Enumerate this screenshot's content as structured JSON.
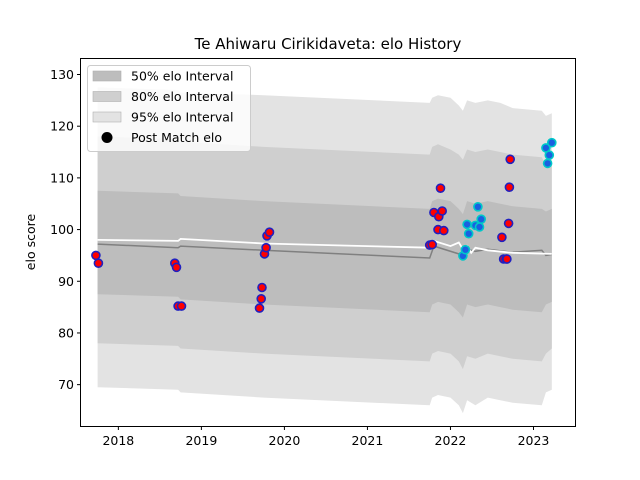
{
  "chart_data": {
    "type": "scatter",
    "title": "Te Ahiwaru Cirikidaveta: elo History",
    "xlabel": "",
    "ylabel": "elo score",
    "xlim": [
      2017.55,
      2023.5
    ],
    "ylim": [
      62,
      133
    ],
    "xticks": [
      2018,
      2019,
      2020,
      2021,
      2022,
      2023
    ],
    "yticks": [
      70,
      80,
      90,
      100,
      110,
      120,
      130
    ],
    "grid": false,
    "legend_position": "top-left",
    "legend": [
      {
        "label": "50% elo Interval",
        "swatch": "band50"
      },
      {
        "label": "80% elo Interval",
        "swatch": "band80"
      },
      {
        "label": "95% elo Interval",
        "swatch": "band95"
      },
      {
        "label": "Post Match elo",
        "swatch": "dot"
      }
    ],
    "colors": {
      "band95": "#e3e3e3",
      "band80": "#cfcfcf",
      "band50": "#bdbdbd",
      "mean_line": "#808080",
      "pre_line": "#ffffff",
      "marker_red_fill": "#ff0000",
      "marker_red_edge": "#2020c0",
      "marker_cyan_fill": "#1a60e0",
      "marker_cyan_edge": "#00c8c8"
    },
    "bands": [
      {
        "x": 2017.75,
        "p95": [
          69.5,
          127.5
        ],
        "p80": [
          78,
          118
        ],
        "p50": [
          87.5,
          107.5
        ]
      },
      {
        "x": 2018.72,
        "p95": [
          69,
          127
        ],
        "p80": [
          77.5,
          117.5
        ],
        "p50": [
          87,
          107
        ]
      },
      {
        "x": 2018.75,
        "p95": [
          68.5,
          126.5
        ],
        "p80": [
          77,
          117
        ],
        "p50": [
          86.5,
          106.5
        ]
      },
      {
        "x": 2019.75,
        "p95": [
          67.5,
          126
        ],
        "p80": [
          76,
          116
        ],
        "p50": [
          85.5,
          105.5
        ]
      },
      {
        "x": 2021.75,
        "p95": [
          66,
          124.5
        ],
        "p80": [
          74.5,
          114.5
        ],
        "p50": [
          84,
          104
        ]
      },
      {
        "x": 2021.78,
        "p95": [
          67.5,
          125.5
        ],
        "p80": [
          76,
          116
        ],
        "p50": [
          85.5,
          105.5
        ]
      },
      {
        "x": 2021.85,
        "p95": [
          68,
          126
        ],
        "p80": [
          76.5,
          116.5
        ],
        "p50": [
          86,
          106
        ]
      },
      {
        "x": 2022.0,
        "p95": [
          67.5,
          125.5
        ],
        "p80": [
          76,
          115.5
        ],
        "p50": [
          85.5,
          105.5
        ]
      },
      {
        "x": 2022.1,
        "p95": [
          66,
          124
        ],
        "p80": [
          74.5,
          114.5
        ],
        "p50": [
          84,
          104
        ]
      },
      {
        "x": 2022.15,
        "p95": [
          64.5,
          123
        ],
        "p80": [
          73,
          113.5
        ],
        "p50": [
          83,
          103
        ]
      },
      {
        "x": 2022.2,
        "p95": [
          67,
          125
        ],
        "p80": [
          75.5,
          115.5
        ],
        "p50": [
          85.5,
          105.5
        ]
      },
      {
        "x": 2022.3,
        "p95": [
          66,
          124.5
        ],
        "p80": [
          75,
          115
        ],
        "p50": [
          85,
          105
        ]
      },
      {
        "x": 2022.45,
        "p95": [
          67.5,
          125
        ],
        "p80": [
          76,
          115.5
        ],
        "p50": [
          85.5,
          105.5
        ]
      },
      {
        "x": 2022.6,
        "p95": [
          67,
          124.5
        ],
        "p80": [
          75.5,
          115
        ],
        "p50": [
          85,
          105
        ]
      },
      {
        "x": 2022.75,
        "p95": [
          66.5,
          123.5
        ],
        "p80": [
          75,
          114.5
        ],
        "p50": [
          84.5,
          104.5
        ]
      },
      {
        "x": 2023.1,
        "p95": [
          66,
          123
        ],
        "p80": [
          74.5,
          114
        ],
        "p50": [
          84,
          104
        ]
      },
      {
        "x": 2023.15,
        "p95": [
          68.5,
          122
        ],
        "p80": [
          76,
          112.5
        ],
        "p50": [
          85.5,
          103.5
        ]
      },
      {
        "x": 2023.22,
        "p95": [
          69,
          122.5
        ],
        "p80": [
          77,
          113
        ],
        "p50": [
          86,
          104
        ]
      }
    ],
    "mean_line": [
      [
        2017.75,
        97.2
      ],
      [
        2018.72,
        96.5
      ],
      [
        2018.75,
        96.8
      ],
      [
        2019.75,
        96.0
      ],
      [
        2021.75,
        94.5
      ],
      [
        2021.8,
        96.8
      ],
      [
        2022.1,
        95.3
      ],
      [
        2022.2,
        96.2
      ],
      [
        2022.3,
        95.8
      ],
      [
        2022.45,
        96.2
      ],
      [
        2022.75,
        95.6
      ],
      [
        2023.1,
        96.0
      ],
      [
        2023.15,
        95.0
      ],
      [
        2023.22,
        95.2
      ]
    ],
    "pre_match_line": [
      [
        2017.75,
        98.0
      ],
      [
        2018.72,
        97.8
      ],
      [
        2018.75,
        98.2
      ],
      [
        2019.75,
        97.3
      ],
      [
        2021.75,
        96.5
      ],
      [
        2021.8,
        97.8
      ],
      [
        2022.0,
        96.8
      ],
      [
        2022.1,
        97.5
      ],
      [
        2022.15,
        96.2
      ],
      [
        2022.2,
        96.8
      ],
      [
        2022.25,
        95.5
      ],
      [
        2022.3,
        96.5
      ],
      [
        2022.45,
        96.0
      ],
      [
        2022.75,
        95.5
      ],
      [
        2023.22,
        95.3
      ]
    ],
    "points_red": [
      [
        2017.73,
        95.0
      ],
      [
        2017.76,
        93.5
      ],
      [
        2018.68,
        93.5
      ],
      [
        2018.7,
        92.7
      ],
      [
        2018.72,
        85.2
      ],
      [
        2018.76,
        85.2
      ],
      [
        2019.7,
        84.8
      ],
      [
        2019.72,
        86.6
      ],
      [
        2019.73,
        88.8
      ],
      [
        2019.76,
        95.3
      ],
      [
        2019.78,
        96.5
      ],
      [
        2019.79,
        98.8
      ],
      [
        2019.82,
        99.5
      ],
      [
        2021.75,
        97.0
      ],
      [
        2021.78,
        97.1
      ],
      [
        2021.8,
        103.3
      ],
      [
        2021.85,
        100.0
      ],
      [
        2021.86,
        102.5
      ],
      [
        2021.88,
        108.0
      ],
      [
        2021.9,
        103.6
      ],
      [
        2021.92,
        99.8
      ],
      [
        2022.62,
        98.5
      ],
      [
        2022.64,
        94.3
      ],
      [
        2022.67,
        94.3
      ],
      [
        2022.68,
        94.3
      ],
      [
        2022.7,
        101.2
      ],
      [
        2022.71,
        108.2
      ],
      [
        2022.72,
        113.6
      ]
    ],
    "points_cyan": [
      [
        2022.15,
        94.9
      ],
      [
        2022.18,
        96.1
      ],
      [
        2022.2,
        101.0
      ],
      [
        2022.22,
        99.2
      ],
      [
        2022.3,
        100.8
      ],
      [
        2022.33,
        104.4
      ],
      [
        2022.35,
        100.5
      ],
      [
        2022.37,
        102.0
      ],
      [
        2023.15,
        115.8
      ],
      [
        2023.17,
        112.8
      ],
      [
        2023.19,
        114.4
      ],
      [
        2023.22,
        116.8
      ]
    ]
  }
}
